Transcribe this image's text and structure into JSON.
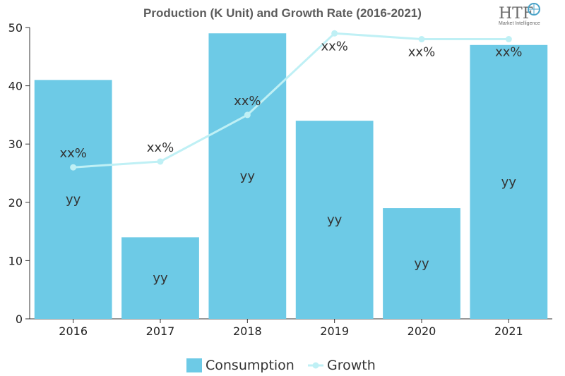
{
  "chart_data": {
    "type": "bar",
    "title": "Production (K Unit) and Growth Rate (2016-2021)",
    "categories": [
      "2016",
      "2017",
      "2018",
      "2019",
      "2020",
      "2021"
    ],
    "ylim": [
      0,
      50
    ],
    "yticks": [
      "0",
      "10",
      "20",
      "30",
      "40",
      "50"
    ],
    "series": [
      {
        "name": "Consumption",
        "type": "bar",
        "color": "#6dcae6",
        "values": [
          41,
          14,
          49,
          34,
          19,
          47
        ],
        "labels": [
          "yy",
          "yy",
          "yy",
          "yy",
          "yy",
          "yy"
        ]
      },
      {
        "name": "Growth",
        "type": "line",
        "color": "#bff0f5",
        "values": [
          26,
          27,
          35,
          49,
          48,
          48
        ],
        "labels": [
          "xx%",
          "xx%",
          "xx%",
          "xx%",
          "xx%",
          "xx%"
        ]
      }
    ],
    "legend": "bottom",
    "grid": false
  },
  "logo": {
    "name": "HTF",
    "tagline": "Market Intelligence"
  }
}
